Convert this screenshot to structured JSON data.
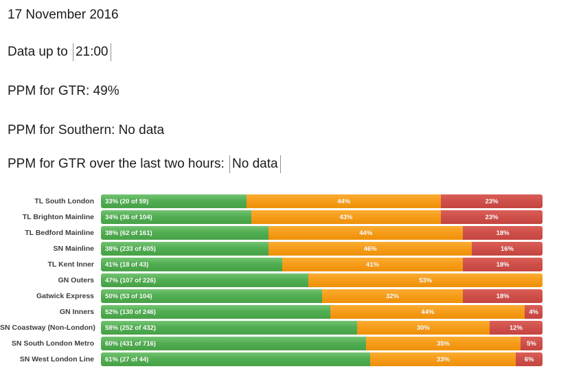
{
  "header": {
    "date": "17 November 2016",
    "data_up_to": {
      "label": "Data up to",
      "value": "21:00"
    },
    "ppm_gtr": {
      "label": "PPM for GTR:",
      "value": "49%"
    },
    "ppm_southern": {
      "label": "PPM for Southern:",
      "value": "No data"
    },
    "ppm_gtr_two_hours": {
      "label": "PPM for GTR over the last two hours:",
      "value": "No data"
    }
  },
  "chart_data": {
    "type": "bar",
    "orientation": "horizontal",
    "stacked": true,
    "value_unit": "percent",
    "xlim": [
      0,
      100
    ],
    "grid": false,
    "legend": "none",
    "colors": {
      "green": "#52ae52",
      "orange": "#f69d1b",
      "red": "#d0504a"
    },
    "categories": [
      "TL South London",
      "TL Brighton Mainline",
      "TL Bedford Mainline",
      "SN Mainline",
      "TL Kent Inner",
      "GN Outers",
      "Gatwick Express",
      "GN Inners",
      "SN Coastway (Non-London)",
      "SN South London Metro",
      "SN West London Line"
    ],
    "series": [
      {
        "name": "green",
        "values": [
          33,
          34,
          38,
          38,
          41,
          47,
          50,
          52,
          58,
          60,
          61
        ]
      },
      {
        "name": "orange",
        "values": [
          44,
          43,
          44,
          46,
          41,
          53,
          32,
          44,
          30,
          35,
          33
        ]
      },
      {
        "name": "red",
        "values": [
          23,
          23,
          18,
          16,
          18,
          0,
          18,
          4,
          12,
          5,
          6
        ]
      }
    ],
    "rows": [
      {
        "label": "TL South London",
        "green": 33,
        "green_label": "33% (20 of 59)",
        "orange": 44,
        "orange_label": "44%",
        "red": 23,
        "red_label": "23%"
      },
      {
        "label": "TL Brighton Mainline",
        "green": 34,
        "green_label": "34% (36 of 104)",
        "orange": 43,
        "orange_label": "43%",
        "red": 23,
        "red_label": "23%"
      },
      {
        "label": "TL Bedford Mainline",
        "green": 38,
        "green_label": "38% (62 of 161)",
        "orange": 44,
        "orange_label": "44%",
        "red": 18,
        "red_label": "18%"
      },
      {
        "label": "SN Mainline",
        "green": 38,
        "green_label": "38% (233 of 605)",
        "orange": 46,
        "orange_label": "46%",
        "red": 16,
        "red_label": "16%"
      },
      {
        "label": "TL Kent Inner",
        "green": 41,
        "green_label": "41% (18 of 43)",
        "orange": 41,
        "orange_label": "41%",
        "red": 18,
        "red_label": "18%"
      },
      {
        "label": "GN Outers",
        "green": 47,
        "green_label": "47% (107 of 226)",
        "orange": 53,
        "orange_label": "53%",
        "red": 0,
        "red_label": ""
      },
      {
        "label": "Gatwick Express",
        "green": 50,
        "green_label": "50% (53 of 104)",
        "orange": 32,
        "orange_label": "32%",
        "red": 18,
        "red_label": "18%"
      },
      {
        "label": "GN Inners",
        "green": 52,
        "green_label": "52% (130 of 246)",
        "orange": 44,
        "orange_label": "44%",
        "red": 4,
        "red_label": "4%"
      },
      {
        "label": "SN Coastway (Non-London)",
        "green": 58,
        "green_label": "58% (252 of 432)",
        "orange": 30,
        "orange_label": "30%",
        "red": 12,
        "red_label": "12%"
      },
      {
        "label": "SN South London Metro",
        "green": 60,
        "green_label": "60% (431 of 716)",
        "orange": 35,
        "orange_label": "35%",
        "red": 5,
        "red_label": "5%"
      },
      {
        "label": "SN West London Line",
        "green": 61,
        "green_label": "61% (27 of 44)",
        "orange": 33,
        "orange_label": "33%",
        "red": 6,
        "red_label": "6%"
      }
    ]
  }
}
